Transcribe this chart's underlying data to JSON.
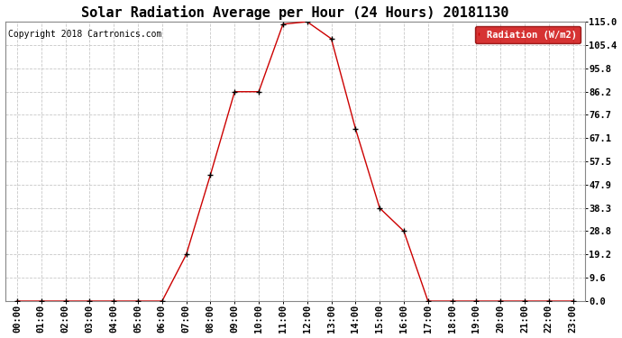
{
  "title": "Solar Radiation Average per Hour (24 Hours) 20181130",
  "copyright": "Copyright 2018 Cartronics.com",
  "legend_label": "Radiation (W/m2)",
  "hours": [
    0,
    1,
    2,
    3,
    4,
    5,
    6,
    7,
    8,
    9,
    10,
    11,
    12,
    13,
    14,
    15,
    16,
    17,
    18,
    19,
    20,
    21,
    22,
    23
  ],
  "hour_labels": [
    "00:00",
    "01:00",
    "02:00",
    "03:00",
    "04:00",
    "05:00",
    "06:00",
    "07:00",
    "08:00",
    "09:00",
    "10:00",
    "11:00",
    "12:00",
    "13:00",
    "14:00",
    "15:00",
    "16:00",
    "17:00",
    "18:00",
    "19:00",
    "20:00",
    "21:00",
    "22:00",
    "23:00"
  ],
  "values": [
    0.0,
    0.0,
    0.0,
    0.0,
    0.0,
    0.0,
    0.0,
    19.2,
    52.0,
    86.2,
    86.2,
    114.0,
    115.0,
    108.0,
    71.0,
    38.3,
    28.8,
    0.0,
    0.0,
    0.0,
    0.0,
    0.0,
    0.0,
    0.0
  ],
  "yticks": [
    0.0,
    9.6,
    19.2,
    28.8,
    38.3,
    47.9,
    57.5,
    67.1,
    76.7,
    86.2,
    95.8,
    105.4,
    115.0
  ],
  "ymax": 115.0,
  "line_color": "#cc0000",
  "marker_color": "#000000",
  "bg_color": "#ffffff",
  "grid_color": "#c8c8c8",
  "legend_bg": "#cc0000",
  "legend_text_color": "#ffffff",
  "title_fontsize": 11,
  "copyright_fontsize": 7,
  "tick_fontsize": 7.5
}
